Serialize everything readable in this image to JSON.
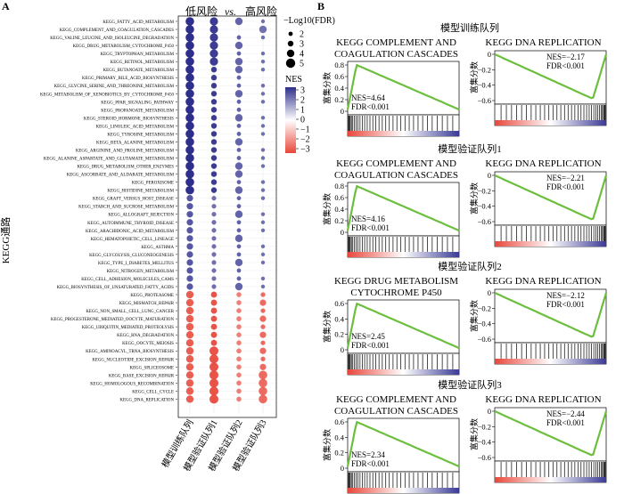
{
  "panel_a": {
    "label": "A",
    "header_low": "低风险",
    "header_vs": "vs.",
    "header_high": "高风险",
    "ylabel": "KEGG通路",
    "legend_size_title": "−Log10(FDR)",
    "legend_size_values": [
      "2",
      "3",
      "4",
      "5"
    ],
    "legend_color_title": "NES",
    "legend_color_ticks": [
      "3",
      "2",
      "1",
      "0",
      "−1",
      "−2",
      "−3"
    ],
    "columns": [
      "模型训练队列",
      "模型验证队列1",
      "模型验证队列2",
      "模型验证队列3"
    ],
    "pathways": [
      "KEGG_FATTY_ACID_METABOLISM",
      "KEGG_COMPLEMENT_AND_COAGULATION_CASCADES",
      "KEGG_VALINE_LEUCINE_AND_ISOLEUCINE_DEGRADATION",
      "KEGG_DRUG_METABOLISM_CYTOCHROME_P450",
      "KEGG_TRYPTOPHAN_METABOLISM",
      "KEGG_RETINOL_METABOLISM",
      "KEGG_BUTANOATE_METABOLISM",
      "KEGG_PRIMARY_BILE_ACID_BIOSYNTHESIS",
      "KEGG_GLYCINE_SERINE_AND_THREONINE_METABOLISM",
      "KEGG_METABOLISM_OF_XENOBIOTICS_BY_CYTOCHROME_P450",
      "KEGG_PPAR_SIGNALING_PATHWAY",
      "KEGG_PROPANOATE_METABOLISM",
      "KEGG_STEROID_HORMONE_BIOSYNTHESIS",
      "KEGG_LINOLEIC_ACID_METABOLISM",
      "KEGG_TYROSINE_METABOLISM",
      "KEGG_BETA_ALANINE_METABOLISM",
      "KEGG_ARGININE_AND_PROLINE_METABOLISM",
      "KEGG_ALANINE_ASPARTATE_AND_GLUTAMATE_METABOLISM",
      "KEGG_DRUG_METABOLISM_OTHER_ENZYMES",
      "KEGG_ASCORBATE_AND_ALDARATE_METABOLISM",
      "KEGG_PEROXISOME",
      "KEGG_HISTIDINE_METABOLISM",
      "KEGG_GRAFT_VERSUS_HOST_DISEASE",
      "KEGG_STARCH_AND_SUCROSE_METABOLISM",
      "KEGG_ALLOGRAFT_REJECTION",
      "KEGG_AUTOIMMUNE_THYROID_DISEASE",
      "KEGG_ARACHIDONIC_ACID_METABOLISM",
      "KEGG_HEMATOPOIETIC_CELL_LINEAGE",
      "KEGG_ASTHMA",
      "KEGG_GLYCOLYSIS_GLUCONEOGENESIS",
      "KEGG_TYPE_I_DIABETES_MELLITUS",
      "KEGG_NITROGEN_METABOLISM",
      "KEGG_CELL_ADHESION_MOLECULES_CAMS",
      "KEGG_BIOSYNTHESIS_OF_UNSATURATED_FATTY_ACIDS",
      "KEGG_PROTEASOME",
      "KEGG_MISMATCH_REPAIR",
      "KEGG_NON_SMALL_CELL_LUNG_CANCER",
      "KEGG_PROGESTERONE_MEDIATED_OOCYTE_MATURATION",
      "KEGG_UBIQUITIN_MEDIATED_PROTEOLYSIS",
      "KEGG_RNA_DEGRADATION",
      "KEGG_OOCYTE_MEIOSIS",
      "KEGG_AMINOACYL_TRNA_BIOSYNTHESIS",
      "KEGG_NUCLEOTIDE_EXCISION_REPAIR",
      "KEGG_SPLICEOSOME",
      "KEGG_BASE_EXCISION_REPAIR",
      "KEGG_HOMOLOGOUS_RECOMBINATION",
      "KEGG_CELL_CYCLE",
      "KEGG_DNA_REPLICATION"
    ]
  },
  "panel_b": {
    "label": "B",
    "ylabel": "富集分数",
    "sections": [
      {
        "title": "模型训练队列",
        "plots": [
          {
            "title1": "KEGG COMPLEMENT AND",
            "title2": "COAGULATION CASCADES",
            "nes": "NES=4.64",
            "fdr": "FDR<0.001",
            "ticks": [
              "0.8",
              "0.6",
              "0.4",
              "0.2",
              "0"
            ]
          },
          {
            "title1": "KEGG DNA REPLICATION",
            "title2": "",
            "nes": "NES=−2.17",
            "fdr": "FDR<0.001",
            "ticks": [
              "0",
              "−0.2",
              "−0.4",
              "−0.6"
            ]
          }
        ]
      },
      {
        "title": "模型验证队列1",
        "plots": [
          {
            "title1": "KEGG COMPLEMENT AND",
            "title2": "COAGULATION CASCADES",
            "nes": "NES=4.16",
            "fdr": "FDR<0.001",
            "ticks": [
              "0.8",
              "0.6",
              "0.4",
              "0.2",
              "0"
            ]
          },
          {
            "title1": "KEGG DNA REPLICATION",
            "title2": "",
            "nes": "NES=−2.21",
            "fdr": "FDR<0.001",
            "ticks": [
              "0",
              "−0.2",
              "−0.4",
              "−0.6"
            ]
          }
        ]
      },
      {
        "title": "模型验证队列2",
        "plots": [
          {
            "title1": "KEGG DRUG METABOLISM",
            "title2": "CYTOCHROME P450",
            "nes": "NES=2.45",
            "fdr": "FDR<0.001",
            "ticks": [
              "0.6",
              "0.4",
              "0.2",
              "0"
            ]
          },
          {
            "title1": "KEGG DNA REPLICATION",
            "title2": "",
            "nes": "NES=−2.12",
            "fdr": "FDR<0.001",
            "ticks": [
              "0",
              "−0.2",
              "−0.4",
              "−0.6"
            ]
          }
        ]
      },
      {
        "title": "模型验证队列3",
        "plots": [
          {
            "title1": "KEGG COMPLEMENT AND",
            "title2": "COAGULATION CASCADES",
            "nes": "NES=2.34",
            "fdr": "FDR<0.001",
            "ticks": [
              "0.6",
              "0.4",
              "0.2",
              "0"
            ]
          },
          {
            "title1": "KEGG DNA REPLICATION",
            "title2": "",
            "nes": "NES=−2.44",
            "fdr": "FDR<0.001",
            "ticks": [
              "0",
              "−0.2",
              "−0.4",
              "−0.6"
            ]
          }
        ]
      }
    ]
  },
  "colors": {
    "positive": "#2e2e8c",
    "negative": "#e8473a",
    "curve": "#6cbf3c"
  }
}
